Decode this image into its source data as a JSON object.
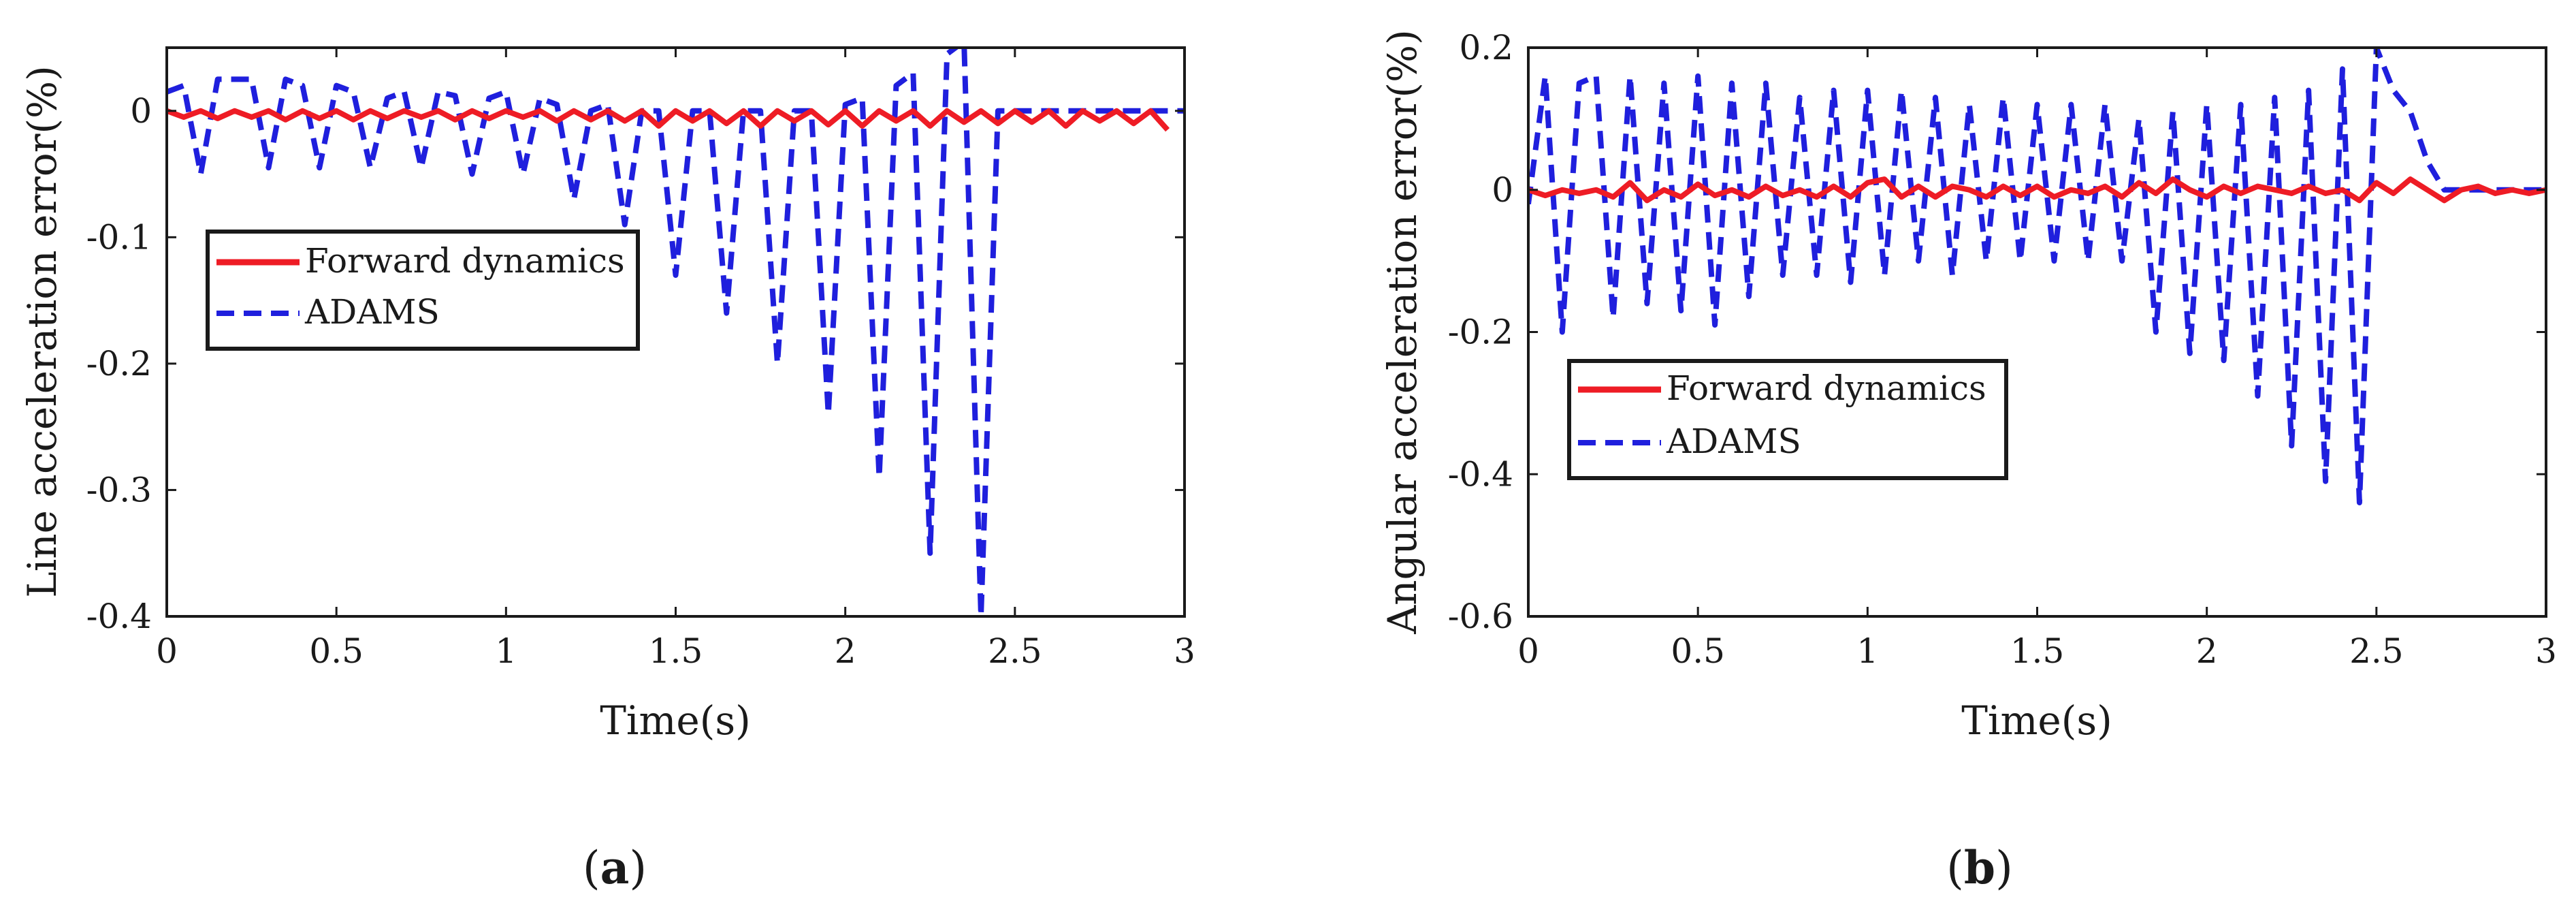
{
  "chart_data": [
    {
      "type": "line",
      "panel_label": "(a)",
      "panel_letter": "a",
      "xlabel": "Time(s)",
      "ylabel": "Line acceleration error(%)",
      "xlim": [
        0,
        3
      ],
      "ylim": [
        -0.4,
        0.05
      ],
      "xticks": [
        0,
        0.5,
        1,
        1.5,
        2,
        2.5,
        3
      ],
      "xtick_labels": [
        "0",
        "0.5",
        "1",
        "1.5",
        "2",
        "2.5",
        "3"
      ],
      "yticks": [
        0,
        -0.1,
        -0.2,
        -0.3,
        -0.4
      ],
      "ytick_labels": [
        "0",
        "-0.1",
        "-0.2",
        "-0.3",
        "-0.4"
      ],
      "grid": false,
      "legend_position": "middle-left",
      "x_step": 0.05,
      "series": [
        {
          "name": "Forward dynamics",
          "color": "#ee1c25",
          "style": "solid",
          "values": [
            0,
            -0.005,
            0,
            -0.006,
            0,
            -0.005,
            0,
            -0.007,
            0,
            -0.006,
            0,
            -0.007,
            0,
            -0.006,
            0,
            -0.005,
            0,
            -0.007,
            0,
            -0.006,
            0,
            -0.005,
            0,
            -0.008,
            0,
            -0.007,
            0,
            -0.008,
            0,
            -0.012,
            0,
            -0.008,
            0,
            -0.01,
            0,
            -0.012,
            0,
            -0.008,
            0,
            -0.011,
            0,
            -0.012,
            0,
            -0.008,
            0,
            -0.012,
            0,
            -0.009,
            0,
            -0.01,
            0,
            -0.009,
            0,
            -0.012,
            0,
            -0.008,
            0,
            -0.01,
            0,
            -0.015
          ]
        },
        {
          "name": "ADAMS",
          "color": "#1f1fdd",
          "style": "dashed",
          "values": [
            0.015,
            0.02,
            -0.05,
            0.025,
            0.025,
            0.025,
            -0.045,
            0.025,
            0.02,
            -0.045,
            0.02,
            0.015,
            -0.045,
            0.01,
            0.015,
            -0.045,
            0.015,
            0.012,
            -0.05,
            0.01,
            0.015,
            -0.05,
            0.01,
            0.005,
            -0.07,
            0,
            0.005,
            -0.09,
            0,
            0,
            -0.13,
            0,
            0,
            -0.16,
            0,
            0,
            -0.2,
            0,
            0,
            -0.24,
            0.005,
            0.01,
            -0.29,
            0.02,
            0.03,
            -0.35,
            0.045,
            0.055,
            -0.4,
            0,
            0,
            0,
            0,
            0,
            0,
            0,
            0,
            0,
            0,
            0,
            0
          ]
        }
      ]
    },
    {
      "type": "line",
      "panel_label": "(b)",
      "panel_letter": "b",
      "xlabel": "Time(s)",
      "ylabel": "Angular acceleration error(%)",
      "xlim": [
        0,
        3
      ],
      "ylim": [
        -0.6,
        0.2
      ],
      "xticks": [
        0,
        0.5,
        1,
        1.5,
        2,
        2.5,
        3
      ],
      "xtick_labels": [
        "0",
        "0.5",
        "1",
        "1.5",
        "2",
        "2.5",
        "3"
      ],
      "yticks": [
        0.2,
        0,
        -0.2,
        -0.4,
        -0.6
      ],
      "ytick_labels": [
        "0.2",
        "0",
        "-0.2",
        "-0.4",
        "-0.6"
      ],
      "grid": false,
      "legend_position": "lower-left",
      "x_step": 0.05,
      "series": [
        {
          "name": "Forward dynamics",
          "color": "#ee1c25",
          "style": "solid",
          "values": [
            0,
            -0.008,
            0,
            -0.005,
            0,
            -0.01,
            0.01,
            -0.015,
            0,
            -0.01,
            0.008,
            -0.008,
            0,
            -0.01,
            0.005,
            -0.008,
            0,
            -0.01,
            0.005,
            -0.01,
            0.01,
            0.015,
            -0.01,
            0.005,
            -0.01,
            0.005,
            0,
            -0.01,
            0.005,
            -0.008,
            0.005,
            -0.01,
            0,
            -0.005,
            0.005,
            -0.01,
            0.01,
            -0.005,
            0.015,
            0,
            -0.01,
            0.005,
            -0.005,
            0.005,
            0,
            -0.005,
            0.005,
            -0.005,
            0,
            -0.015,
            0.01,
            -0.005,
            0.015,
            0,
            -0.015,
            0,
            0.005,
            -0.005,
            0,
            -0.005,
            0
          ]
        },
        {
          "name": "ADAMS",
          "color": "#1f1fdd",
          "style": "dashed",
          "values": [
            -0.02,
            0.16,
            -0.2,
            0.15,
            0.16,
            -0.18,
            0.16,
            -0.16,
            0.15,
            -0.17,
            0.16,
            -0.19,
            0.15,
            -0.15,
            0.15,
            -0.12,
            0.13,
            -0.12,
            0.14,
            -0.13,
            0.14,
            -0.12,
            0.14,
            -0.1,
            0.13,
            -0.12,
            0.12,
            -0.1,
            0.13,
            -0.1,
            0.12,
            -0.1,
            0.12,
            -0.1,
            0.12,
            -0.1,
            0.1,
            -0.2,
            0.11,
            -0.23,
            0.12,
            -0.24,
            0.12,
            -0.29,
            0.13,
            -0.36,
            0.14,
            -0.41,
            0.17,
            -0.44,
            0.2,
            0.14,
            0.11,
            0.04,
            0,
            0,
            0,
            0,
            0,
            0,
            0
          ]
        }
      ]
    }
  ]
}
